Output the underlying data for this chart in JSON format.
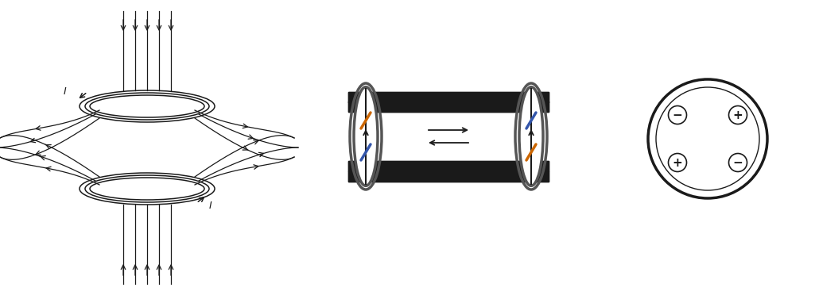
{
  "bg_color": "#ffffff",
  "line_color": "#1a1a1a",
  "blue_color": "#3355aa",
  "orange_color": "#cc6600",
  "fig_width": 10.3,
  "fig_height": 3.72,
  "dpi": 100
}
